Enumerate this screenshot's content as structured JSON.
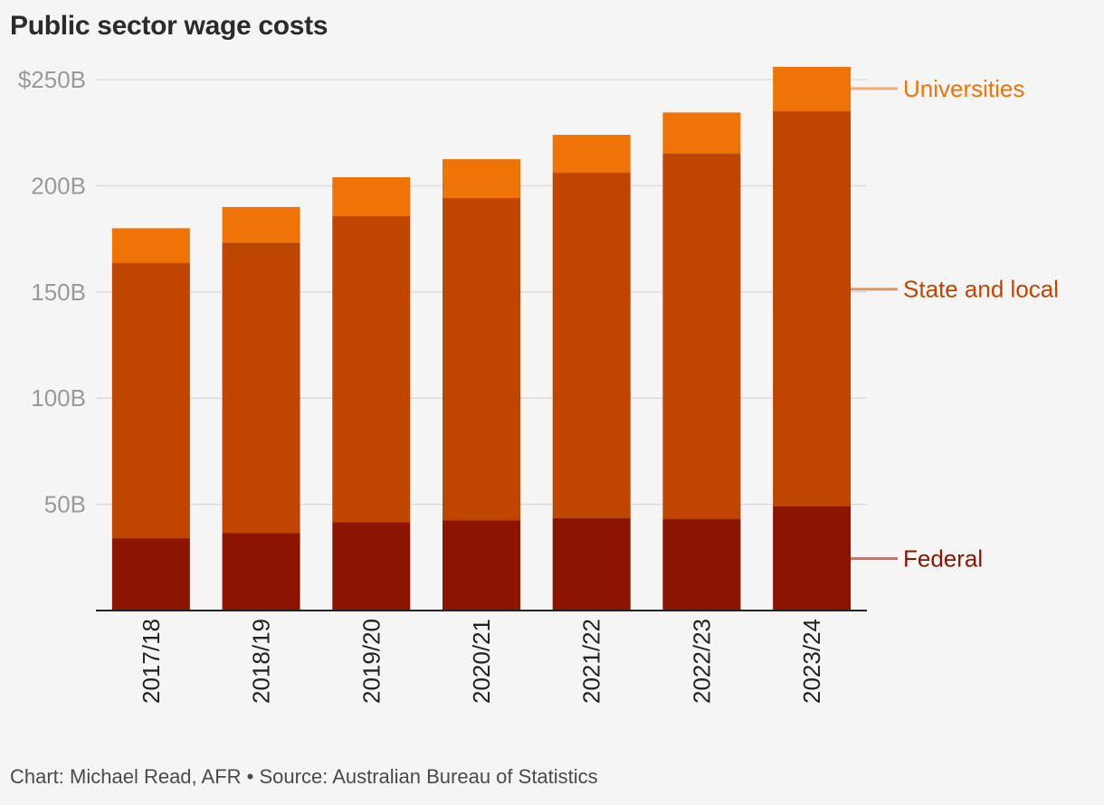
{
  "title": "Public sector wage costs",
  "footer": "Chart: Michael Read, AFR • Source: Australian Bureau of Statistics",
  "chart_data": {
    "type": "bar",
    "stacked": true,
    "categories": [
      "2017/18",
      "2018/19",
      "2019/20",
      "2020/21",
      "2021/22",
      "2022/23",
      "2023/24"
    ],
    "series": [
      {
        "name": "Federal",
        "color": "#8b1500",
        "values": [
          34,
          36.5,
          41.5,
          42.5,
          43.5,
          43,
          49
        ]
      },
      {
        "name": "State and local",
        "color": "#bf4500",
        "values": [
          129.5,
          136.5,
          144,
          151.5,
          162.5,
          172,
          186
        ]
      },
      {
        "name": "Universities",
        "color": "#f07308",
        "values": [
          16.5,
          17,
          18.5,
          18.5,
          18,
          19.5,
          21
        ]
      }
    ],
    "ylim": [
      0,
      250
    ],
    "y_ticks": [
      {
        "value": 50,
        "label": "50B"
      },
      {
        "value": 100,
        "label": "100B"
      },
      {
        "value": 150,
        "label": "150B"
      },
      {
        "value": 200,
        "label": "200B"
      },
      {
        "value": 250,
        "label": "$250B"
      }
    ],
    "grid": true,
    "legend": "right, labels aligned to series"
  }
}
